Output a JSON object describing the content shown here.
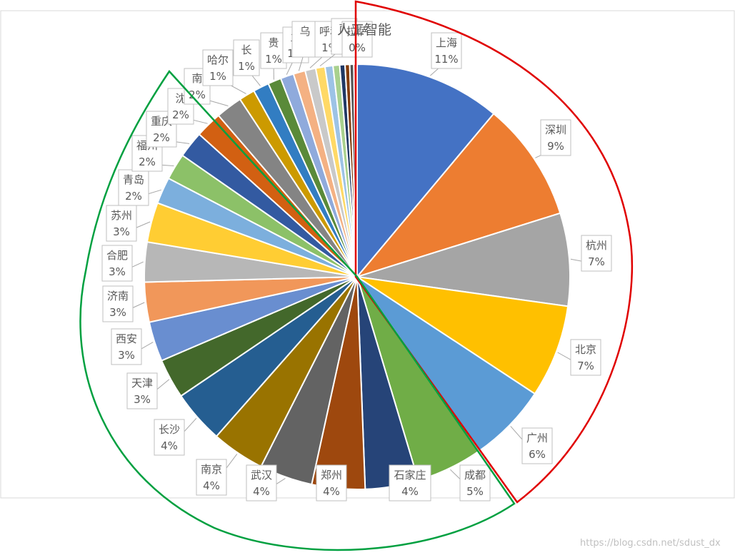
{
  "chart_data": {
    "type": "pie",
    "title": "人工智能",
    "slices": [
      {
        "label": "上海",
        "pct_label": "11%",
        "value": 11,
        "color": "#4472c4"
      },
      {
        "label": "深圳",
        "pct_label": "9%",
        "value": 9,
        "color": "#ed7d31"
      },
      {
        "label": "杭州",
        "pct_label": "7%",
        "value": 7,
        "color": "#a5a5a5"
      },
      {
        "label": "北京",
        "pct_label": "7%",
        "value": 7,
        "color": "#ffc000"
      },
      {
        "label": "广州",
        "pct_label": "6%",
        "value": 6,
        "color": "#5b9bd5"
      },
      {
        "label": "成都",
        "pct_label": "5%",
        "value": 5,
        "color": "#70ad47"
      },
      {
        "label": "石家庄",
        "pct_label": "4%",
        "value": 4,
        "color": "#264478"
      },
      {
        "label": "郑州",
        "pct_label": "4%",
        "value": 4,
        "color": "#9e480e"
      },
      {
        "label": "武汉",
        "pct_label": "4%",
        "value": 4,
        "color": "#636363"
      },
      {
        "label": "南京",
        "pct_label": "4%",
        "value": 4,
        "color": "#997300"
      },
      {
        "label": "长沙",
        "pct_label": "4%",
        "value": 4,
        "color": "#255e91"
      },
      {
        "label": "天津",
        "pct_label": "3%",
        "value": 3,
        "color": "#43682b"
      },
      {
        "label": "西安",
        "pct_label": "3%",
        "value": 3,
        "color": "#698ed0"
      },
      {
        "label": "济南",
        "pct_label": "3%",
        "value": 3,
        "color": "#f1975a"
      },
      {
        "label": "合肥",
        "pct_label": "3%",
        "value": 3,
        "color": "#b7b7b7"
      },
      {
        "label": "苏州",
        "pct_label": "3%",
        "value": 3,
        "color": "#ffcd33"
      },
      {
        "label": "青岛",
        "pct_label": "2%",
        "value": 2,
        "color": "#7cafdd"
      },
      {
        "label": "福州",
        "pct_label": "2%",
        "value": 2,
        "color": "#8cc168"
      },
      {
        "label": "重庆",
        "pct_label": "2%",
        "value": 2,
        "color": "#335aa1"
      },
      {
        "label": "沈",
        "pct_label": "2%",
        "value": 2,
        "color": "#d26012"
      },
      {
        "label": "南",
        "pct_label": "2%",
        "value": 2,
        "color": "#848484"
      },
      {
        "label": "哈尔",
        "pct_label": "1%",
        "value": 1.2,
        "color": "#cc9a00"
      },
      {
        "label": "长",
        "pct_label": "1%",
        "value": 1.2,
        "color": "#327dc2"
      },
      {
        "label": "贵",
        "pct_label": "1%",
        "value": 1,
        "color": "#5a8a39"
      },
      {
        "label": "兰",
        "pct_label": "1%",
        "value": 1,
        "color": "#8faadc"
      },
      {
        "label": "乌",
        "pct_label": "",
        "value": 0.9,
        "color": "#f4b183"
      },
      {
        "label": "呼和",
        "pct_label": "1%",
        "value": 0.8,
        "color": "#c9c9c9"
      },
      {
        "label": "南",
        "pct_label": "",
        "value": 0.7,
        "color": "#ffd966"
      },
      {
        "label": "",
        "pct_label": "",
        "value": 0.6,
        "color": "#9dc3e6"
      },
      {
        "label": "",
        "pct_label": "",
        "value": 0.5,
        "color": "#a9d18e"
      },
      {
        "label": "",
        "pct_label": "",
        "value": 0.4,
        "color": "#203864"
      },
      {
        "label": "",
        "pct_label": "",
        "value": 0.35,
        "color": "#843c0c"
      },
      {
        "label": "",
        "pct_label": "",
        "value": 0.3,
        "color": "#525252"
      },
      {
        "label": "拉萨",
        "pct_label": "0%",
        "value": 0.25,
        "color": "#c00000"
      }
    ],
    "legend": "none"
  },
  "annotations": {
    "red_arc_color": "#e00000",
    "green_arc_color": "#00a040"
  },
  "watermark": "https://blog.csdn.net/sdust_dx"
}
